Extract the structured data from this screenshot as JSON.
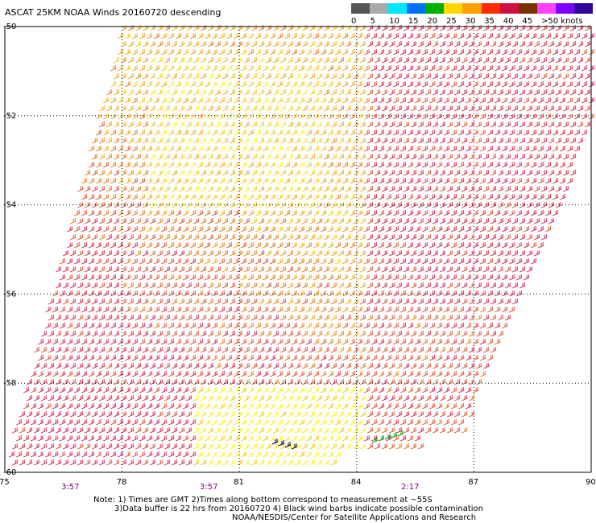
{
  "title": "ASCAT 25KM NOAA Winds 20160720 descending",
  "legend": {
    "labels": [
      "0",
      "5",
      "10",
      "15",
      "20",
      "25",
      "30",
      "35",
      "40",
      "45",
      ">50 knots"
    ],
    "colors": [
      "#555555",
      "#aaaaaa",
      "#00e8ff",
      "#0070ff",
      "#00b000",
      "#ffd800",
      "#ff9f00",
      "#ff2a00",
      "#d01040",
      "#7a3000",
      "#ff40ff",
      "#8000ff",
      "#30009a"
    ]
  },
  "axes": {
    "lon_ticks": [
      "75",
      "78",
      "81",
      "84",
      "87",
      "90"
    ],
    "lat_ticks": [
      "-50",
      "-52",
      "-54",
      "-56",
      "-58",
      "-60"
    ],
    "times": [
      "3:57",
      "3:57",
      "2:17"
    ]
  },
  "notes": [
    "Note: 1) Times are GMT 2)Times along bottom correspond to measurement at ~55S",
    "3)Data buffer is 22 hrs from 20160720 4) Black wind barbs indicate possible contamination",
    "NOAA/NESDIS/Center for Satellite Applications and Research"
  ],
  "map": {
    "lon_range": [
      75,
      90
    ],
    "lat_range": [
      -60,
      -50
    ],
    "wind_colors": [
      "#ffee00",
      "#f5c400",
      "#f0a000",
      "#e87000",
      "#e04020",
      "#d81040"
    ]
  }
}
